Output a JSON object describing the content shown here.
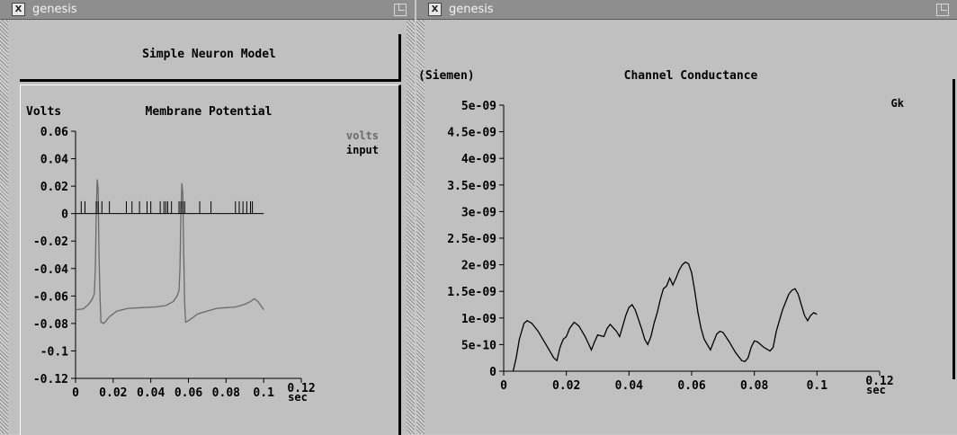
{
  "windows": [
    {
      "title": "genesis"
    },
    {
      "title": "genesis"
    }
  ],
  "left_panel": {
    "header_label": "Simple Neuron Model"
  },
  "chart_data": [
    {
      "type": "line",
      "title": "Membrane Potential",
      "ylabel": "Volts",
      "xlabel": "sec",
      "xlim": [
        0,
        0.12
      ],
      "ylim": [
        -0.12,
        0.06
      ],
      "xticks": [
        "0",
        "0.02",
        "0.04",
        "0.06",
        "0.08",
        "0.1",
        "0.12"
      ],
      "yticks": [
        "0.06",
        "0.04",
        "0.02",
        "0",
        "-0.02",
        "-0.04",
        "-0.06",
        "-0.08",
        "-0.1",
        "-0.12"
      ],
      "legend": [
        "volts",
        "input"
      ],
      "legend_position": "top-right",
      "series": [
        {
          "name": "volts",
          "color": "#6a6a6a",
          "points": [
            [
              0,
              -0.07
            ],
            [
              0.004,
              -0.0695
            ],
            [
              0.007,
              -0.066
            ],
            [
              0.009,
              -0.062
            ],
            [
              0.01,
              -0.058
            ],
            [
              0.0105,
              -0.04
            ],
            [
              0.011,
              0.0
            ],
            [
              0.0115,
              0.025
            ],
            [
              0.012,
              0.018
            ],
            [
              0.0125,
              -0.03
            ],
            [
              0.013,
              -0.06
            ],
            [
              0.0135,
              -0.079
            ],
            [
              0.015,
              -0.08
            ],
            [
              0.018,
              -0.075
            ],
            [
              0.022,
              -0.071
            ],
            [
              0.028,
              -0.069
            ],
            [
              0.035,
              -0.0685
            ],
            [
              0.042,
              -0.068
            ],
            [
              0.048,
              -0.067
            ],
            [
              0.052,
              -0.064
            ],
            [
              0.054,
              -0.06
            ],
            [
              0.055,
              -0.056
            ],
            [
              0.0555,
              -0.04
            ],
            [
              0.056,
              0.0
            ],
            [
              0.0565,
              0.022
            ],
            [
              0.057,
              0.015
            ],
            [
              0.0575,
              -0.03
            ],
            [
              0.058,
              -0.065
            ],
            [
              0.0585,
              -0.079
            ],
            [
              0.06,
              -0.078
            ],
            [
              0.065,
              -0.073
            ],
            [
              0.07,
              -0.071
            ],
            [
              0.075,
              -0.069
            ],
            [
              0.08,
              -0.0685
            ],
            [
              0.085,
              -0.068
            ],
            [
              0.09,
              -0.066
            ],
            [
              0.093,
              -0.064
            ],
            [
              0.095,
              -0.062
            ],
            [
              0.097,
              -0.064
            ],
            [
              0.099,
              -0.068
            ],
            [
              0.1,
              -0.07
            ]
          ]
        },
        {
          "name": "input",
          "color": "#000000",
          "baseline": 0.0,
          "spike_top": 0.009,
          "spikes": [
            0.003,
            0.005,
            0.011,
            0.012,
            0.014,
            0.018,
            0.027,
            0.03,
            0.034,
            0.038,
            0.04,
            0.045,
            0.047,
            0.048,
            0.049,
            0.051,
            0.055,
            0.056,
            0.057,
            0.058,
            0.066,
            0.072,
            0.085,
            0.087,
            0.089,
            0.091,
            0.093,
            0.094
          ]
        }
      ]
    },
    {
      "type": "line",
      "title": "Channel Conductance",
      "ylabel": "(Siemen)",
      "xlabel": "sec",
      "xlim": [
        0,
        0.12
      ],
      "ylim": [
        0,
        5e-09
      ],
      "xticks": [
        "0",
        "0.02",
        "0.04",
        "0.06",
        "0.08",
        "0.1",
        "0.12"
      ],
      "yticks": [
        "5e-09",
        "4.5e-09",
        "4e-09",
        "3.5e-09",
        "3e-09",
        "2.5e-09",
        "2e-09",
        "1.5e-09",
        "1e-09",
        "5e-10",
        "0"
      ],
      "legend": [
        "Gk"
      ],
      "legend_position": "top-right",
      "series": [
        {
          "name": "Gk",
          "color": "#000000",
          "points": [
            [
              0.003,
              0.0
            ],
            [
              0.004,
              2.5e-10
            ],
            [
              0.005,
              6e-10
            ],
            [
              0.0065,
              9e-10
            ],
            [
              0.0075,
              9.5e-10
            ],
            [
              0.009,
              9e-10
            ],
            [
              0.011,
              7.5e-10
            ],
            [
              0.013,
              5.5e-10
            ],
            [
              0.015,
              3.5e-10
            ],
            [
              0.016,
              2.5e-10
            ],
            [
              0.017,
              2e-10
            ],
            [
              0.018,
              4.5e-10
            ],
            [
              0.019,
              6e-10
            ],
            [
              0.02,
              6.5e-10
            ],
            [
              0.021,
              8e-10
            ],
            [
              0.0225,
              9.2e-10
            ],
            [
              0.024,
              8.5e-10
            ],
            [
              0.026,
              6.5e-10
            ],
            [
              0.028,
              4e-10
            ],
            [
              0.029,
              5.5e-10
            ],
            [
              0.03,
              6.8e-10
            ],
            [
              0.032,
              6.5e-10
            ],
            [
              0.033,
              8e-10
            ],
            [
              0.034,
              8.8e-10
            ],
            [
              0.036,
              7.5e-10
            ],
            [
              0.037,
              6.5e-10
            ],
            [
              0.038,
              8.5e-10
            ],
            [
              0.039,
              1.05e-09
            ],
            [
              0.04,
              1.2e-09
            ],
            [
              0.041,
              1.25e-09
            ],
            [
              0.042,
              1.15e-09
            ],
            [
              0.044,
              8e-10
            ],
            [
              0.045,
              6e-10
            ],
            [
              0.046,
              5e-10
            ],
            [
              0.047,
              6.5e-10
            ],
            [
              0.048,
              9e-10
            ],
            [
              0.049,
              1.1e-09
            ],
            [
              0.05,
              1.35e-09
            ],
            [
              0.051,
              1.55e-09
            ],
            [
              0.052,
              1.6e-09
            ],
            [
              0.053,
              1.75e-09
            ],
            [
              0.054,
              1.62e-09
            ],
            [
              0.055,
              1.75e-09
            ],
            [
              0.056,
              1.9e-09
            ],
            [
              0.057,
              2e-09
            ],
            [
              0.058,
              2.05e-09
            ],
            [
              0.059,
              2.02e-09
            ],
            [
              0.06,
              1.85e-09
            ],
            [
              0.061,
              1.5e-09
            ],
            [
              0.062,
              1.1e-09
            ],
            [
              0.063,
              8e-10
            ],
            [
              0.064,
              6e-10
            ],
            [
              0.065,
              5e-10
            ],
            [
              0.066,
              4e-10
            ],
            [
              0.067,
              5.5e-10
            ],
            [
              0.068,
              7e-10
            ],
            [
              0.069,
              7.5e-10
            ],
            [
              0.07,
              7.3e-10
            ],
            [
              0.072,
              5.5e-10
            ],
            [
              0.074,
              3.5e-10
            ],
            [
              0.076,
              2e-10
            ],
            [
              0.077,
              1.8e-10
            ],
            [
              0.078,
              2.5e-10
            ],
            [
              0.079,
              4.5e-10
            ],
            [
              0.08,
              5.7e-10
            ],
            [
              0.081,
              5.5e-10
            ],
            [
              0.083,
              4.5e-10
            ],
            [
              0.085,
              3.8e-10
            ],
            [
              0.086,
              4.5e-10
            ],
            [
              0.087,
              7.5e-10
            ],
            [
              0.088,
              9.5e-10
            ],
            [
              0.089,
              1.15e-09
            ],
            [
              0.09,
              1.3e-09
            ],
            [
              0.091,
              1.45e-09
            ],
            [
              0.092,
              1.52e-09
            ],
            [
              0.093,
              1.55e-09
            ],
            [
              0.094,
              1.45e-09
            ],
            [
              0.095,
              1.25e-09
            ],
            [
              0.096,
              1.05e-09
            ],
            [
              0.097,
              9.5e-10
            ],
            [
              0.098,
              1.05e-09
            ],
            [
              0.099,
              1.1e-09
            ],
            [
              0.1,
              1.07e-09
            ]
          ]
        }
      ]
    }
  ]
}
